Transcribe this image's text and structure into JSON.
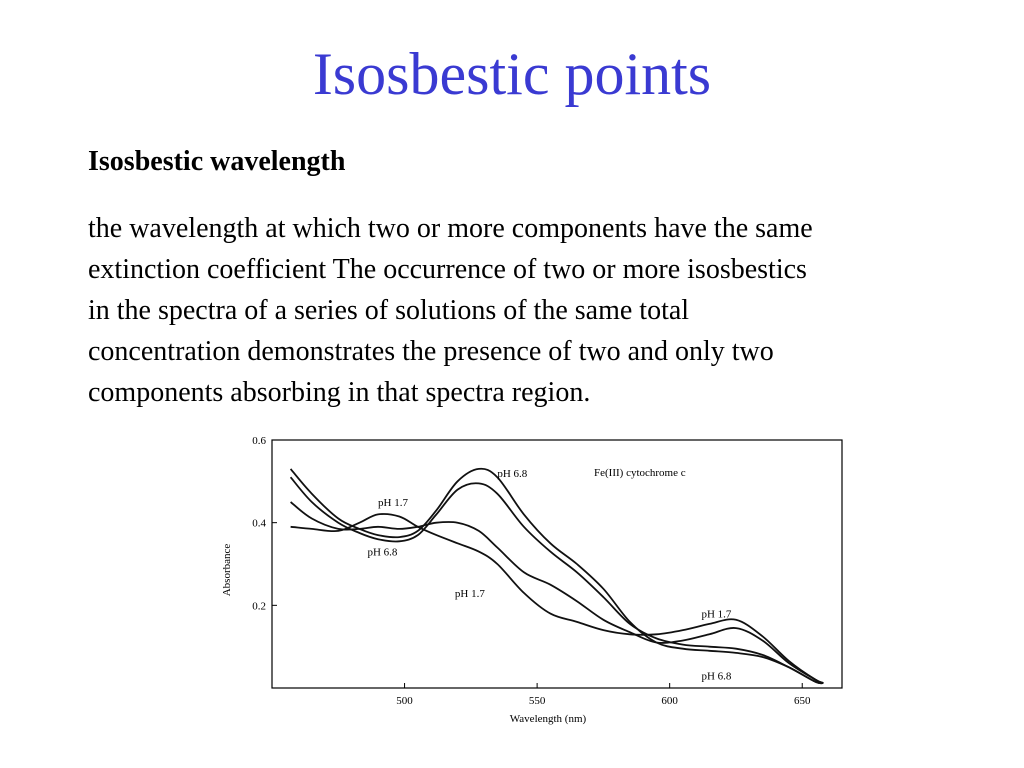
{
  "slide": {
    "title": "Isosbestic points",
    "subhead": "Isosbestic wavelength",
    "body_lines": [
      "the wavelength at which two or more components have the same",
      "extinction coefficient The occurrence of two or more isosbestics",
      "in the spectra of a series of solutions of the same total",
      "concentration demonstrates the presence of two and only two",
      "components absorbing in that spectra region."
    ]
  },
  "chart_data": {
    "type": "line",
    "title": "Fe(III) cytochrome c",
    "xlabel": "Wavelength (nm)",
    "ylabel": "Absorbance",
    "xlim": [
      450,
      665
    ],
    "ylim": [
      0,
      0.6
    ],
    "x_ticks": [
      500,
      550,
      600,
      650
    ],
    "y_ticks": [
      0.2,
      0.4,
      0.6
    ],
    "grid": false,
    "annotations": [
      {
        "text": "pH 6.8",
        "x": 535,
        "y": 0.51
      },
      {
        "text": "pH 1.7",
        "x": 490,
        "y": 0.44
      },
      {
        "text": "pH 6.8",
        "x": 486,
        "y": 0.32
      },
      {
        "text": "pH 1.7",
        "x": 519,
        "y": 0.22
      },
      {
        "text": "pH 1.7",
        "x": 612,
        "y": 0.17
      },
      {
        "text": "pH 6.8",
        "x": 612,
        "y": 0.02
      }
    ],
    "series": [
      {
        "name": "pH 6.8",
        "x": [
          457,
          465,
          475,
          483,
          490,
          498,
          505,
          512,
          520,
          528,
          535,
          545,
          555,
          565,
          575,
          585,
          595,
          605,
          615,
          625,
          635,
          645,
          655,
          658
        ],
        "y": [
          0.53,
          0.47,
          0.41,
          0.385,
          0.37,
          0.365,
          0.38,
          0.43,
          0.5,
          0.53,
          0.51,
          0.42,
          0.35,
          0.3,
          0.24,
          0.16,
          0.11,
          0.095,
          0.09,
          0.085,
          0.075,
          0.05,
          0.015,
          0.012
        ]
      },
      {
        "name": "",
        "x": [
          457,
          465,
          475,
          483,
          490,
          498,
          505,
          512,
          520,
          528,
          535,
          545,
          555,
          565,
          575,
          585,
          595,
          605,
          615,
          625,
          635,
          645,
          655,
          658
        ],
        "y": [
          0.51,
          0.45,
          0.4,
          0.375,
          0.36,
          0.355,
          0.37,
          0.42,
          0.48,
          0.495,
          0.47,
          0.39,
          0.33,
          0.28,
          0.22,
          0.155,
          0.12,
          0.105,
          0.1,
          0.095,
          0.08,
          0.05,
          0.015,
          0.012
        ]
      },
      {
        "name": "",
        "x": [
          457,
          465,
          475,
          483,
          490,
          498,
          505,
          512,
          520,
          528,
          535,
          545,
          555,
          565,
          575,
          585,
          595,
          605,
          615,
          625,
          635,
          645,
          655,
          658
        ],
        "y": [
          0.45,
          0.41,
          0.385,
          0.385,
          0.39,
          0.385,
          0.39,
          0.4,
          0.4,
          0.38,
          0.34,
          0.28,
          0.25,
          0.21,
          0.165,
          0.135,
          0.11,
          0.115,
          0.13,
          0.145,
          0.115,
          0.06,
          0.02,
          0.012
        ]
      },
      {
        "name": "pH 1.7",
        "x": [
          457,
          465,
          475,
          483,
          490,
          498,
          505,
          512,
          520,
          528,
          535,
          545,
          555,
          565,
          575,
          585,
          595,
          605,
          615,
          625,
          635,
          645,
          655,
          658
        ],
        "y": [
          0.39,
          0.385,
          0.38,
          0.4,
          0.42,
          0.415,
          0.39,
          0.37,
          0.35,
          0.33,
          0.3,
          0.23,
          0.18,
          0.16,
          0.14,
          0.13,
          0.13,
          0.14,
          0.155,
          0.165,
          0.125,
          0.065,
          0.02,
          0.012
        ]
      }
    ]
  }
}
